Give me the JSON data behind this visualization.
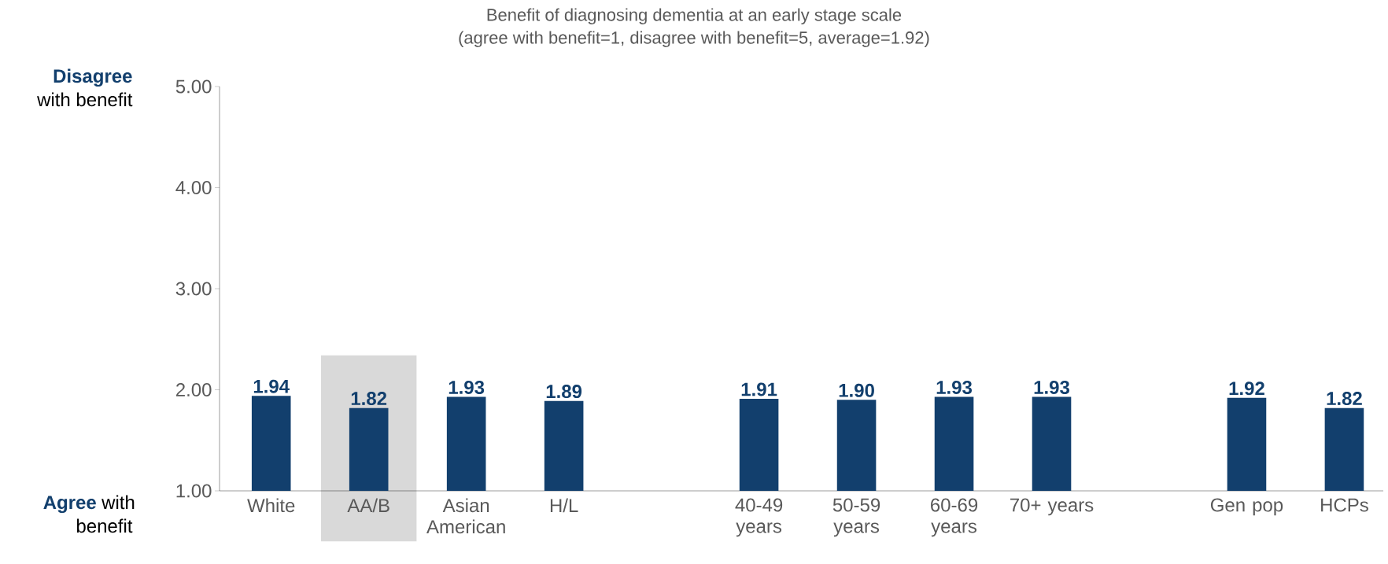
{
  "chart_data": {
    "type": "bar",
    "title": "Benefit of diagnosing dementia at an early stage scale",
    "subtitle": "(agree with benefit=1, disagree with benefit=5, average=1.92)",
    "categories": [
      "White",
      "AA/B",
      "Asian American",
      "H/L",
      null,
      "40-49 years",
      "50-59 years",
      "60-69 years",
      "70+ years",
      null,
      "Gen pop",
      "HCPs"
    ],
    "values": [
      1.94,
      1.82,
      1.93,
      1.89,
      null,
      1.91,
      1.9,
      1.93,
      1.93,
      null,
      1.92,
      1.82
    ],
    "color": "#123f6d",
    "value_labels": [
      "1.94",
      "1.82",
      "1.93",
      "1.89",
      null,
      "1.91",
      "1.90",
      "1.93",
      "1.93",
      null,
      "1.92",
      "1.82"
    ],
    "ylim": [
      1,
      5
    ],
    "yticks": [
      {
        "value": 1,
        "label": "1.00"
      },
      {
        "value": 2,
        "label": "2.00"
      },
      {
        "value": 3,
        "label": "3.00"
      },
      {
        "value": 4,
        "label": "4.00"
      },
      {
        "value": 5,
        "label": "5.00"
      }
    ],
    "bands": [
      {
        "axis": "x",
        "from": "AA/B",
        "to": "AA/B",
        "color": "#d9d9d9"
      }
    ],
    "annotations": [
      "Disagree",
      "with benefit",
      "Agree",
      "with",
      "benefit"
    ],
    "grid": false
  }
}
